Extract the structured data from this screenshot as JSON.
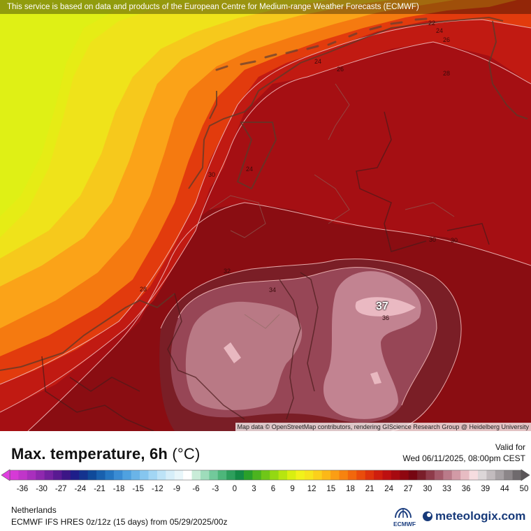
{
  "map": {
    "disclaimer": "This service is based on data and products of the European Centre for Medium-range Weather Forecasts (ECMWF)",
    "attribution": "Map data © OpenStreetMap contributors, rendering GIScience Research Group @ Heidelberg University",
    "peak_marker": "37",
    "contour_labels": [
      "22",
      "24",
      "26",
      "24",
      "26",
      "28",
      "24",
      "30",
      "30",
      "32",
      "28",
      "34",
      "36",
      "30"
    ]
  },
  "legend": {
    "title": "Max. temperature, 6h",
    "unit": "(°C)",
    "valid_label": "Valid for",
    "valid_time": "Wed 06/11/2025, 08:00pm CEST",
    "region": "Netherlands",
    "model_info": "ECMWF IFS HRES 0z/12z (15 days) from  05/29/2025/00z",
    "ticks": [
      "-36",
      "-30",
      "-27",
      "-24",
      "-21",
      "-18",
      "-15",
      "-12",
      "-9",
      "-6",
      "-3",
      "0",
      "3",
      "6",
      "9",
      "12",
      "15",
      "18",
      "21",
      "24",
      "27",
      "30",
      "33",
      "36",
      "39",
      "44",
      "50"
    ],
    "colors": [
      "#d63ad6",
      "#c035c9",
      "#a92fbd",
      "#8f28ae",
      "#7421a0",
      "#591a92",
      "#3c1686",
      "#1e1e8a",
      "#14338f",
      "#0f4a9a",
      "#1860ae",
      "#2576c2",
      "#3a8cd4",
      "#4fa1e0",
      "#6ab4e8",
      "#86c6ef",
      "#a2d6f4",
      "#bde3f7",
      "#d6eef9",
      "#e8f6fa",
      "#ffffff",
      "#c9ecd8",
      "#9edcbb",
      "#72c99b",
      "#4db67a",
      "#2d9f5c",
      "#138a45",
      "#2aa02a",
      "#4cb41f",
      "#6fc718",
      "#94d812",
      "#b7e50f",
      "#d9ef10",
      "#f2f21a",
      "#f7e41c",
      "#fbd01b",
      "#fcb817",
      "#fb9e14",
      "#f7830f",
      "#f2670c",
      "#ea4c0b",
      "#de330c",
      "#cf1e0e",
      "#bd1011",
      "#a70a10",
      "#8f0710",
      "#760612",
      "#7a1e2a",
      "#8e3b4a",
      "#a45a6a",
      "#ba7a89",
      "#d29aa6",
      "#e7bcc3",
      "#f6dde0",
      "#dcd6d8",
      "#c2bbbe",
      "#a7a1a4",
      "#8c8689",
      "#6f6a6d"
    ]
  },
  "branding": {
    "ecmwf": "ECMWF",
    "meteologix": "meteologix.com"
  }
}
